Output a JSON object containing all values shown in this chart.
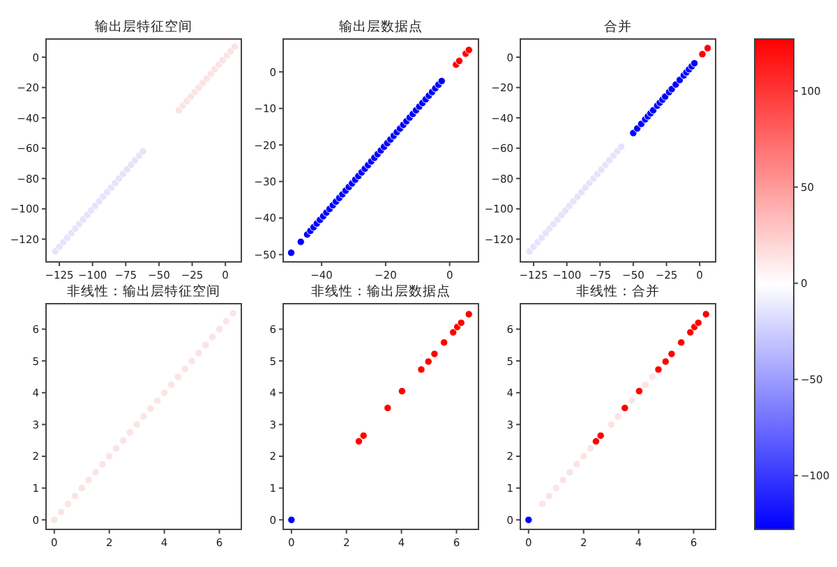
{
  "chart_data": [
    {
      "type": "scatter",
      "title": "输出层特征空间",
      "xlim": [
        -135,
        12
      ],
      "ylim": [
        -135,
        12
      ],
      "xticks": [
        -125,
        -100,
        -75,
        -50,
        -25,
        0
      ],
      "yticks": [
        -120,
        -100,
        -80,
        -60,
        -40,
        -20,
        0
      ],
      "marker": "circle",
      "grid": false,
      "series": [
        {
          "color": "#e4e4fb",
          "x": [
            -128,
            -125,
            -122,
            -119,
            -116,
            -113,
            -110,
            -107,
            -104,
            -101,
            -98,
            -95,
            -92,
            -89,
            -86,
            -83,
            -80,
            -77,
            -74,
            -71,
            -68,
            -65,
            -62
          ],
          "values": [
            -128,
            -125,
            -122,
            -119,
            -116,
            -113,
            -110,
            -107,
            -104,
            -101,
            -98,
            -95,
            -92,
            -89,
            -86,
            -83,
            -80,
            -77,
            -74,
            -71,
            -68,
            -65,
            -62
          ]
        },
        {
          "color": "#fbe4e4",
          "x": [
            -35,
            -32,
            -29,
            -26,
            -23,
            -20,
            -17,
            -14,
            -11,
            -8,
            -5,
            -2,
            1,
            4,
            7
          ],
          "values": [
            -35,
            -32,
            -29,
            -26,
            -23,
            -20,
            -17,
            -14,
            -11,
            -8,
            -5,
            -2,
            1,
            4,
            7
          ]
        }
      ]
    },
    {
      "type": "scatter",
      "title": "输出层数据点",
      "xlim": [
        -52,
        9
      ],
      "ylim": [
        -52,
        9
      ],
      "xticks": [
        -40,
        -20,
        0
      ],
      "yticks": [
        -50,
        -40,
        -30,
        -20,
        -10,
        0
      ],
      "marker": "circle",
      "grid": false,
      "series": [
        {
          "color": "#0000ff",
          "x": [
            -49.5,
            -46.5,
            -44.5,
            -43.5,
            -42.5,
            -41.5,
            -40.5,
            -39.5,
            -38.5,
            -37.5,
            -36.5,
            -35.5,
            -34.5,
            -33.5,
            -32.5,
            -31.5,
            -30.5,
            -29.5,
            -28.5,
            -27.5,
            -26.5,
            -25.5,
            -24.5,
            -23.5,
            -22.5,
            -21.5,
            -20.5,
            -19.5,
            -18.5,
            -17.5,
            -16.5,
            -15.5,
            -14.5,
            -13.5,
            -12.5,
            -11.5,
            -10.5,
            -9.5,
            -8.5,
            -7.5,
            -6.5,
            -5.5,
            -4.5,
            -3.5,
            -2.5
          ],
          "values": [
            -49.5,
            -46.5,
            -44.5,
            -43.5,
            -42.5,
            -41.5,
            -40.5,
            -39.5,
            -38.5,
            -37.5,
            -36.5,
            -35.5,
            -34.5,
            -33.5,
            -32.5,
            -31.5,
            -30.5,
            -29.5,
            -28.5,
            -27.5,
            -26.5,
            -25.5,
            -24.5,
            -23.5,
            -22.5,
            -21.5,
            -20.5,
            -19.5,
            -18.5,
            -17.5,
            -16.5,
            -15.5,
            -14.5,
            -13.5,
            -12.5,
            -11.5,
            -10.5,
            -9.5,
            -8.5,
            -7.5,
            -6.5,
            -5.5,
            -4.5,
            -3.5,
            -2.5
          ]
        },
        {
          "color": "#ff0000",
          "x": [
            2,
            3,
            5,
            6
          ],
          "values": [
            2,
            3,
            5,
            6
          ]
        }
      ]
    },
    {
      "type": "scatter",
      "title": "合并",
      "xlim": [
        -135,
        12
      ],
      "ylim": [
        -135,
        12
      ],
      "xticks": [
        -125,
        -100,
        -75,
        -50,
        -25,
        0
      ],
      "yticks": [
        -120,
        -100,
        -80,
        -60,
        -40,
        -20,
        0
      ],
      "marker": "circle",
      "grid": false,
      "clim": [
        -128,
        127
      ],
      "cticks": [
        -100,
        -50,
        0,
        50,
        100
      ],
      "series": [
        {
          "color": "#e4e4fb",
          "x": [
            -128,
            -125,
            -122,
            -119,
            -116,
            -113,
            -110,
            -107,
            -104,
            -101,
            -98,
            -95,
            -92,
            -89,
            -86,
            -83,
            -80,
            -77,
            -74,
            -71,
            -68,
            -65,
            -62,
            -59
          ],
          "values": [
            -128,
            -125,
            -122,
            -119,
            -116,
            -113,
            -110,
            -107,
            -104,
            -101,
            -98,
            -95,
            -92,
            -89,
            -86,
            -83,
            -80,
            -77,
            -74,
            -71,
            -68,
            -65,
            -62,
            -59
          ]
        },
        {
          "color": "#0000ff",
          "x": [
            -50,
            -47,
            -44,
            -41,
            -39,
            -37,
            -35,
            -32,
            -30,
            -28,
            -26,
            -23,
            -21,
            -18,
            -15,
            -12,
            -10,
            -8,
            -6,
            -4
          ],
          "values": [
            -50,
            -47,
            -44,
            -41,
            -39,
            -37,
            -35,
            -32,
            -30,
            -28,
            -26,
            -23,
            -21,
            -18,
            -15,
            -12,
            -10,
            -8,
            -6,
            -4
          ]
        },
        {
          "color": "#ff0000",
          "x": [
            2,
            6
          ],
          "values": [
            2,
            6
          ]
        }
      ]
    },
    {
      "type": "scatter",
      "title": "非线性：输出层特征空间",
      "xlim": [
        -0.3,
        6.8
      ],
      "ylim": [
        -0.3,
        6.8
      ],
      "xticks": [
        0,
        2,
        4,
        6
      ],
      "yticks": [
        0,
        1,
        2,
        3,
        4,
        5,
        6
      ],
      "marker": "circle",
      "grid": false,
      "series": [
        {
          "color": "#fbe4e4",
          "x": [
            0,
            0.25,
            0.5,
            0.75,
            1,
            1.25,
            1.5,
            1.75,
            2,
            2.25,
            2.5,
            2.75,
            3,
            3.25,
            3.5,
            3.75,
            4,
            4.25,
            4.5,
            4.75,
            5,
            5.25,
            5.5,
            5.75,
            6,
            6.25,
            6.5
          ],
          "values": [
            0,
            0.25,
            0.5,
            0.75,
            1,
            1.25,
            1.5,
            1.75,
            2,
            2.25,
            2.5,
            2.75,
            3,
            3.25,
            3.5,
            3.75,
            4,
            4.25,
            4.5,
            4.75,
            5,
            5.25,
            5.5,
            5.75,
            6,
            6.25,
            6.5
          ]
        }
      ]
    },
    {
      "type": "scatter",
      "title": "非线性：输出层数据点",
      "xlim": [
        -0.3,
        6.8
      ],
      "ylim": [
        -0.3,
        6.8
      ],
      "xticks": [
        0,
        2,
        4,
        6
      ],
      "yticks": [
        0,
        1,
        2,
        3,
        4,
        5,
        6
      ],
      "marker": "circle",
      "grid": false,
      "series": [
        {
          "color": "#0000ff",
          "x": [
            0
          ],
          "values": [
            0
          ]
        },
        {
          "color": "#ff0000",
          "x": [
            2.45,
            2.62,
            3.5,
            4.02,
            4.72,
            4.98,
            5.2,
            5.55,
            5.88,
            6.03,
            6.17,
            6.45
          ],
          "values": [
            2.47,
            2.65,
            3.52,
            4.05,
            4.73,
            4.98,
            5.22,
            5.58,
            5.9,
            6.07,
            6.2,
            6.47
          ]
        }
      ]
    },
    {
      "type": "scatter",
      "title": "非线性：合并",
      "xlim": [
        -0.3,
        6.8
      ],
      "ylim": [
        -0.3,
        6.8
      ],
      "xticks": [
        0,
        2,
        4,
        6
      ],
      "yticks": [
        0,
        1,
        2,
        3,
        4,
        5,
        6
      ],
      "marker": "circle",
      "grid": false,
      "series": [
        {
          "color": "#fbe4e4",
          "x": [
            0.5,
            0.75,
            1,
            1.25,
            1.5,
            1.75,
            2,
            2.25,
            3,
            3.25,
            3.75,
            4.25,
            4.5
          ],
          "values": [
            0.5,
            0.75,
            1,
            1.25,
            1.5,
            1.75,
            2,
            2.25,
            3,
            3.25,
            3.75,
            4.25,
            4.5
          ]
        },
        {
          "color": "#0000ff",
          "x": [
            0
          ],
          "values": [
            0
          ]
        },
        {
          "color": "#ff0000",
          "x": [
            2.45,
            2.62,
            3.5,
            4.02,
            4.72,
            4.98,
            5.2,
            5.55,
            5.88,
            6.03,
            6.17,
            6.45
          ],
          "values": [
            2.47,
            2.65,
            3.52,
            4.05,
            4.73,
            4.98,
            5.22,
            5.58,
            5.9,
            6.07,
            6.2,
            6.47
          ]
        }
      ]
    }
  ]
}
